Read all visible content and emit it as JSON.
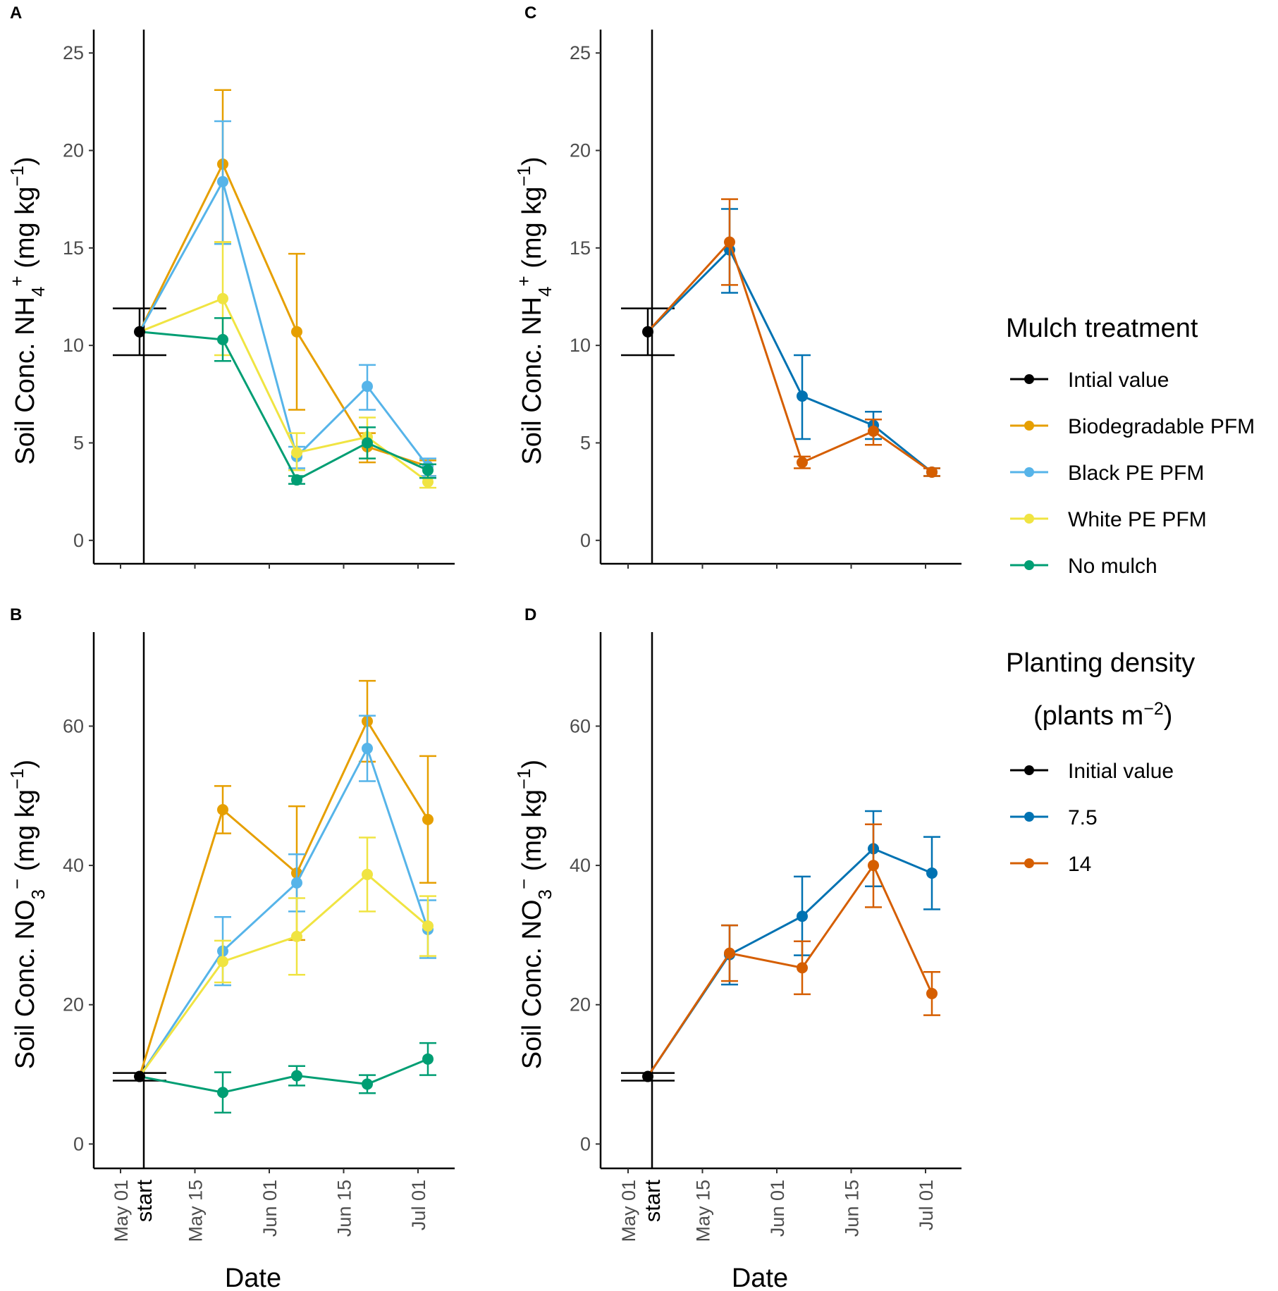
{
  "chart_data": [
    {
      "panel": "A",
      "type": "line",
      "ylabel_main": "Soil Conc. NH",
      "ylabel_sub": "4",
      "ylabel_sup": "+",
      "ylabel_unit_pre": " (mg kg",
      "ylabel_unit_sup": "−1",
      "ylabel_unit_post": ")",
      "ylim": [
        -1.2,
        26.2
      ],
      "yticks": [
        0,
        5,
        10,
        15,
        20,
        25
      ],
      "xticks": [
        "May 01",
        "May 15",
        "Jun 01",
        "Jun 15",
        "Jul 01"
      ],
      "initial": {
        "value": 10.7,
        "err_low": 9.5,
        "err_high": 11.9
      },
      "series": [
        {
          "name": "Biodegradable PFM",
          "color": "#E69F00",
          "values": [
            19.3,
            10.7,
            4.8,
            3.8
          ],
          "err_low": [
            15.3,
            6.7,
            4.0,
            3.3
          ],
          "err_high": [
            23.1,
            14.7,
            5.5,
            4.1
          ]
        },
        {
          "name": "Black PE PFM",
          "color": "#56B4E9",
          "values": [
            18.4,
            4.3,
            7.9,
            3.8
          ],
          "err_low": [
            15.2,
            3.7,
            6.7,
            3.3
          ],
          "err_high": [
            21.5,
            4.8,
            9.0,
            4.2
          ]
        },
        {
          "name": "White PE PFM",
          "color": "#F0E442",
          "values": [
            12.4,
            4.5,
            5.3,
            3.0
          ],
          "err_low": [
            9.5,
            3.6,
            4.2,
            2.7
          ],
          "err_high": [
            15.3,
            5.5,
            6.3,
            3.2
          ]
        },
        {
          "name": "No mulch",
          "color": "#009E73",
          "values": [
            10.3,
            3.1,
            5.0,
            3.6
          ],
          "err_low": [
            9.2,
            2.9,
            4.2,
            3.2
          ],
          "err_high": [
            11.4,
            3.3,
            5.8,
            3.9
          ]
        }
      ]
    },
    {
      "panel": "B",
      "type": "line",
      "ylabel_main": "Soil  Conc. NO",
      "ylabel_sub": "3",
      "ylabel_sup": "−",
      "ylabel_unit_pre": " (mg kg",
      "ylabel_unit_sup": "−1",
      "ylabel_unit_post": ")",
      "ylim": [
        -3.5,
        73.5
      ],
      "yticks": [
        0,
        20,
        40,
        60
      ],
      "xticks": [
        "May 01",
        "May 15",
        "Jun 01",
        "Jun 15",
        "Jul 01"
      ],
      "initial": {
        "value": 9.7,
        "err_low": 9.1,
        "err_high": 10.2
      },
      "series": [
        {
          "name": "Biodegradable PFM",
          "color": "#E69F00",
          "values": [
            48.0,
            38.9,
            60.7,
            46.6
          ],
          "err_low": [
            44.6,
            29.3,
            54.9,
            37.5
          ],
          "err_high": [
            51.4,
            48.5,
            66.5,
            55.7
          ]
        },
        {
          "name": "Black PE PFM",
          "color": "#56B4E9",
          "values": [
            27.7,
            37.5,
            56.8,
            30.8
          ],
          "err_low": [
            22.8,
            33.4,
            52.1,
            26.7
          ],
          "err_high": [
            32.6,
            41.6,
            61.5,
            35.0
          ]
        },
        {
          "name": "White PE PFM",
          "color": "#F0E442",
          "values": [
            26.2,
            29.8,
            38.7,
            31.3
          ],
          "err_low": [
            23.2,
            24.3,
            33.4,
            27.0
          ],
          "err_high": [
            29.2,
            35.3,
            44.0,
            35.6
          ]
        },
        {
          "name": "No mulch",
          "color": "#009E73",
          "values": [
            7.4,
            9.8,
            8.6,
            12.2
          ],
          "err_low": [
            4.5,
            8.4,
            7.3,
            9.9
          ],
          "err_high": [
            10.3,
            11.2,
            9.9,
            14.5
          ]
        }
      ]
    },
    {
      "panel": "C",
      "type": "line",
      "ylabel_main": "Soil Conc. NH",
      "ylabel_sub": "4",
      "ylabel_sup": "+",
      "ylabel_unit_pre": " (mg kg",
      "ylabel_unit_sup": "−1",
      "ylabel_unit_post": ")",
      "ylim": [
        -1.2,
        26.2
      ],
      "yticks": [
        0,
        5,
        10,
        15,
        20,
        25
      ],
      "xticks": [
        "May 01",
        "May 15",
        "Jun 01",
        "Jun 15",
        "Jul 01"
      ],
      "initial": {
        "value": 10.7,
        "err_low": 9.5,
        "err_high": 11.9
      },
      "series": [
        {
          "name": "7.5",
          "color": "#0072B2",
          "values": [
            14.9,
            7.4,
            5.9,
            3.5
          ],
          "err_low": [
            12.7,
            5.2,
            5.2,
            3.3
          ],
          "err_high": [
            17.0,
            9.5,
            6.6,
            3.7
          ]
        },
        {
          "name": "14",
          "color": "#D55E00",
          "values": [
            15.3,
            4.0,
            5.6,
            3.5
          ],
          "err_low": [
            13.1,
            3.7,
            4.9,
            3.3
          ],
          "err_high": [
            17.5,
            4.3,
            6.2,
            3.7
          ]
        }
      ]
    },
    {
      "panel": "D",
      "type": "line",
      "ylabel_main": "Soil  Conc. NO",
      "ylabel_sub": "3",
      "ylabel_sup": "−",
      "ylabel_unit_pre": " (mg kg",
      "ylabel_unit_sup": "−1",
      "ylabel_unit_post": ")",
      "ylim": [
        -3.5,
        73.5
      ],
      "yticks": [
        0,
        20,
        40,
        60
      ],
      "xticks": [
        "May 01",
        "May 15",
        "Jun 01",
        "Jun 15",
        "Jul 01"
      ],
      "initial": {
        "value": 9.7,
        "err_low": 9.1,
        "err_high": 10.2
      },
      "series": [
        {
          "name": "7.5",
          "color": "#0072B2",
          "values": [
            27.2,
            32.7,
            42.4,
            38.9
          ],
          "err_low": [
            22.9,
            27.1,
            37.0,
            33.7
          ],
          "err_high": [
            31.4,
            38.4,
            47.8,
            44.1
          ]
        },
        {
          "name": "14",
          "color": "#D55E00",
          "values": [
            27.4,
            25.3,
            40.0,
            21.6
          ],
          "err_low": [
            23.4,
            21.5,
            34.0,
            18.5
          ],
          "err_high": [
            31.4,
            29.1,
            45.9,
            24.7
          ]
        }
      ]
    }
  ],
  "start_label": "start",
  "xlabel": "Date",
  "legend_mulch": {
    "title": "Mulch treatment",
    "items": [
      {
        "label": "Intial value",
        "color": "#000000"
      },
      {
        "label": "Biodegradable PFM",
        "color": "#E69F00"
      },
      {
        "label": "Black PE PFM",
        "color": "#56B4E9"
      },
      {
        "label": "White PE PFM",
        "color": "#F0E442"
      },
      {
        "label": "No mulch",
        "color": "#009E73"
      }
    ]
  },
  "legend_density": {
    "title_line1": "Planting density",
    "title_line2_pre": "(plants m",
    "title_line2_sup": "−2",
    "title_line2_post": ")",
    "items": [
      {
        "label": "Initial value",
        "color": "#000000"
      },
      {
        "label": "7.5",
        "color": "#0072B2"
      },
      {
        "label": "14",
        "color": "#D55E00"
      }
    ]
  }
}
